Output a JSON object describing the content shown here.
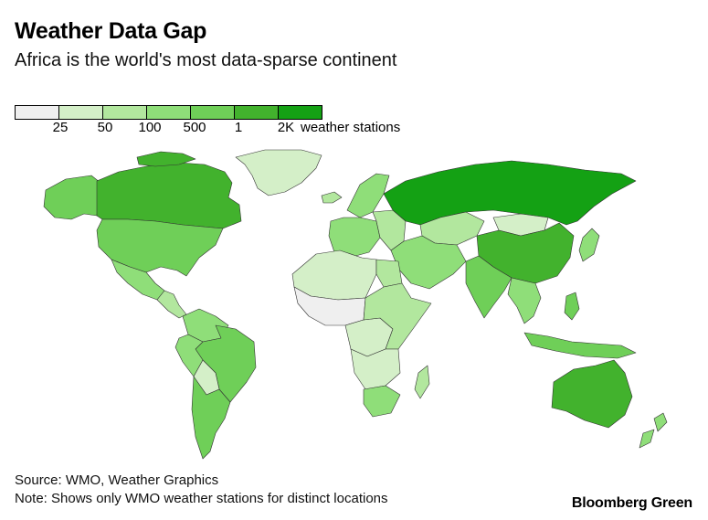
{
  "header": {
    "title": "Weather Data Gap",
    "subtitle": "Africa is the world's most data-sparse continent"
  },
  "legend": {
    "swatches": [
      {
        "color": "#efefef"
      },
      {
        "color": "#d4efc8"
      },
      {
        "color": "#b2e79e"
      },
      {
        "color": "#8fde79"
      },
      {
        "color": "#6fcf58"
      },
      {
        "color": "#42b22d"
      },
      {
        "color": "#14a114"
      }
    ],
    "breaks": [
      "25",
      "50",
      "100",
      "500",
      "1",
      "2K"
    ],
    "unit_label": "weather stations"
  },
  "map": {
    "regions": [
      {
        "name": "Greenland",
        "color": "#d4efc8"
      },
      {
        "name": "Canada",
        "color": "#42b22d"
      },
      {
        "name": "Alaska",
        "color": "#6fcf58"
      },
      {
        "name": "United States",
        "color": "#6fcf58"
      },
      {
        "name": "Mexico",
        "color": "#8fde79"
      },
      {
        "name": "Central America",
        "color": "#b2e79e"
      },
      {
        "name": "Colombia / Venezuela",
        "color": "#8fde79"
      },
      {
        "name": "Brazil",
        "color": "#6fcf58"
      },
      {
        "name": "Peru",
        "color": "#8fde79"
      },
      {
        "name": "Bolivia",
        "color": "#d4efc8"
      },
      {
        "name": "Argentina / Chile",
        "color": "#6fcf58"
      },
      {
        "name": "Iceland",
        "color": "#b2e79e"
      },
      {
        "name": "Scandinavia",
        "color": "#8fde79"
      },
      {
        "name": "Western Europe",
        "color": "#8fde79"
      },
      {
        "name": "Eastern Europe",
        "color": "#b2e79e"
      },
      {
        "name": "Russia",
        "color": "#14a114"
      },
      {
        "name": "Kazakhstan",
        "color": "#b2e79e"
      },
      {
        "name": "Mongolia",
        "color": "#d4efc8"
      },
      {
        "name": "China",
        "color": "#42b22d"
      },
      {
        "name": "Middle East",
        "color": "#8fde79"
      },
      {
        "name": "India",
        "color": "#6fcf58"
      },
      {
        "name": "Southeast Asia",
        "color": "#8fde79"
      },
      {
        "name": "Japan",
        "color": "#8fde79"
      },
      {
        "name": "Indonesia",
        "color": "#6fcf58"
      },
      {
        "name": "Australia",
        "color": "#42b22d"
      },
      {
        "name": "New Zealand",
        "color": "#8fde79"
      },
      {
        "name": "North Africa",
        "color": "#d4efc8"
      },
      {
        "name": "Egypt",
        "color": "#b2e79e"
      },
      {
        "name": "West Africa",
        "color": "#efefef"
      },
      {
        "name": "Central Africa",
        "color": "#d4efc8"
      },
      {
        "name": "East Africa",
        "color": "#b2e79e"
      },
      {
        "name": "Southern Africa",
        "color": "#d4efc8"
      },
      {
        "name": "South Africa",
        "color": "#8fde79"
      },
      {
        "name": "Madagascar",
        "color": "#b2e79e"
      }
    ]
  },
  "footer": {
    "source": "Source: WMO, Weather Graphics",
    "note": "Note: Shows only WMO weather stations for distinct locations"
  },
  "brand": "Bloomberg Green"
}
